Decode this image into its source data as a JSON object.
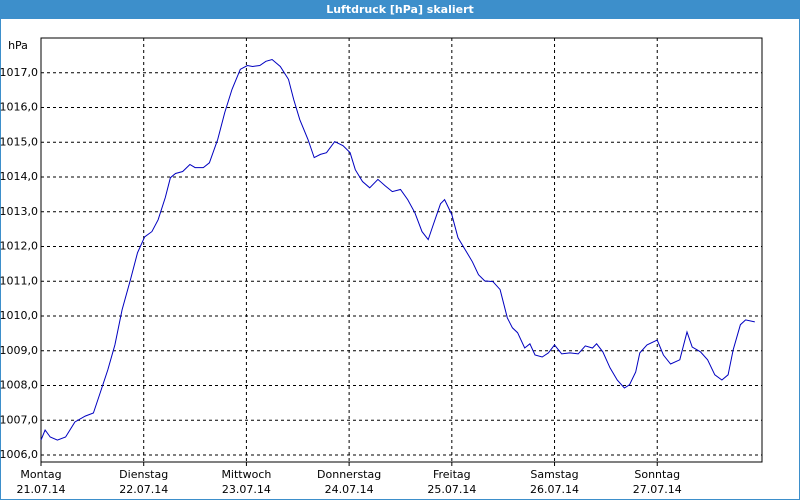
{
  "chart_data": {
    "type": "line",
    "title": "Luftdruck [hPa] skaliert",
    "y_label": "hPa",
    "color": "#0000c0",
    "grid": true,
    "xlim": [
      0,
      7.02
    ],
    "ylim": [
      1005.8,
      1018.0
    ],
    "xticks": [
      {
        "value": 0,
        "label": "Montag",
        "date": "21.07.14"
      },
      {
        "value": 1,
        "label": "Dienstag",
        "date": "22.07.14"
      },
      {
        "value": 2,
        "label": "Mittwoch",
        "date": "23.07.14"
      },
      {
        "value": 3,
        "label": "Donnerstag",
        "date": "24.07.14"
      },
      {
        "value": 4,
        "label": "Freitag",
        "date": "25.07.14"
      },
      {
        "value": 5,
        "label": "Samstag",
        "date": "26.07.14"
      },
      {
        "value": 6,
        "label": "Sonntag",
        "date": "27.07.14"
      }
    ],
    "yticks": [
      {
        "value": 1006,
        "label": "1006,0"
      },
      {
        "value": 1007,
        "label": "1007,0"
      },
      {
        "value": 1008,
        "label": "1008,0"
      },
      {
        "value": 1009,
        "label": "1009,0"
      },
      {
        "value": 1010,
        "label": "1010,0"
      },
      {
        "value": 1011,
        "label": "1011,0"
      },
      {
        "value": 1012,
        "label": "1012,0"
      },
      {
        "value": 1013,
        "label": "1013,0"
      },
      {
        "value": 1014,
        "label": "1014,0"
      },
      {
        "value": 1015,
        "label": "1015,0"
      },
      {
        "value": 1016,
        "label": "1016,0"
      },
      {
        "value": 1017,
        "label": "1017,0"
      }
    ],
    "x": [
      0.0,
      0.04,
      0.09,
      0.16,
      0.24,
      0.33,
      0.43,
      0.51,
      0.57,
      0.65,
      0.72,
      0.79,
      0.87,
      0.94,
      1.01,
      1.08,
      1.14,
      1.21,
      1.26,
      1.31,
      1.38,
      1.45,
      1.5,
      1.58,
      1.64,
      1.72,
      1.79,
      1.86,
      1.94,
      2.01,
      2.06,
      2.13,
      2.19,
      2.25,
      2.33,
      2.41,
      2.46,
      2.52,
      2.6,
      2.66,
      2.72,
      2.78,
      2.86,
      2.94,
      3.01,
      3.06,
      3.13,
      3.2,
      3.28,
      3.35,
      3.42,
      3.5,
      3.57,
      3.64,
      3.71,
      3.77,
      3.82,
      3.89,
      3.93,
      4.0,
      4.06,
      4.13,
      4.2,
      4.26,
      4.32,
      4.4,
      4.47,
      4.54,
      4.59,
      4.64,
      4.71,
      4.76,
      4.81,
      4.88,
      4.94,
      5.0,
      5.07,
      5.15,
      5.23,
      5.3,
      5.37,
      5.41,
      5.47,
      5.54,
      5.61,
      5.68,
      5.73,
      5.79,
      5.83,
      5.9,
      6.0,
      6.06,
      6.13,
      6.22,
      6.29,
      6.34,
      6.42,
      6.49,
      6.56,
      6.63,
      6.69,
      6.74,
      6.81,
      6.86,
      6.95
    ],
    "values": [
      1006.43,
      1006.72,
      1006.52,
      1006.43,
      1006.52,
      1006.95,
      1007.12,
      1007.21,
      1007.73,
      1008.45,
      1009.17,
      1010.18,
      1011.04,
      1011.82,
      1012.28,
      1012.43,
      1012.77,
      1013.41,
      1013.98,
      1014.1,
      1014.16,
      1014.36,
      1014.27,
      1014.27,
      1014.41,
      1015.08,
      1015.86,
      1016.52,
      1017.1,
      1017.21,
      1017.18,
      1017.21,
      1017.33,
      1017.38,
      1017.18,
      1016.81,
      1016.23,
      1015.65,
      1015.08,
      1014.56,
      1014.65,
      1014.7,
      1015.02,
      1014.9,
      1014.7,
      1014.21,
      1013.87,
      1013.69,
      1013.93,
      1013.75,
      1013.58,
      1013.64,
      1013.35,
      1012.97,
      1012.43,
      1012.2,
      1012.63,
      1013.23,
      1013.35,
      1012.92,
      1012.25,
      1011.91,
      1011.56,
      1011.19,
      1011.01,
      1010.99,
      1010.76,
      1009.95,
      1009.66,
      1009.52,
      1009.08,
      1009.2,
      1008.88,
      1008.82,
      1008.94,
      1009.17,
      1008.91,
      1008.94,
      1008.91,
      1009.14,
      1009.08,
      1009.2,
      1008.97,
      1008.51,
      1008.16,
      1007.93,
      1008.02,
      1008.39,
      1008.94,
      1009.17,
      1009.31,
      1008.88,
      1008.62,
      1008.74,
      1009.54,
      1009.11,
      1008.97,
      1008.74,
      1008.31,
      1008.16,
      1008.31,
      1009.03,
      1009.75,
      1009.89,
      1009.83
    ]
  }
}
